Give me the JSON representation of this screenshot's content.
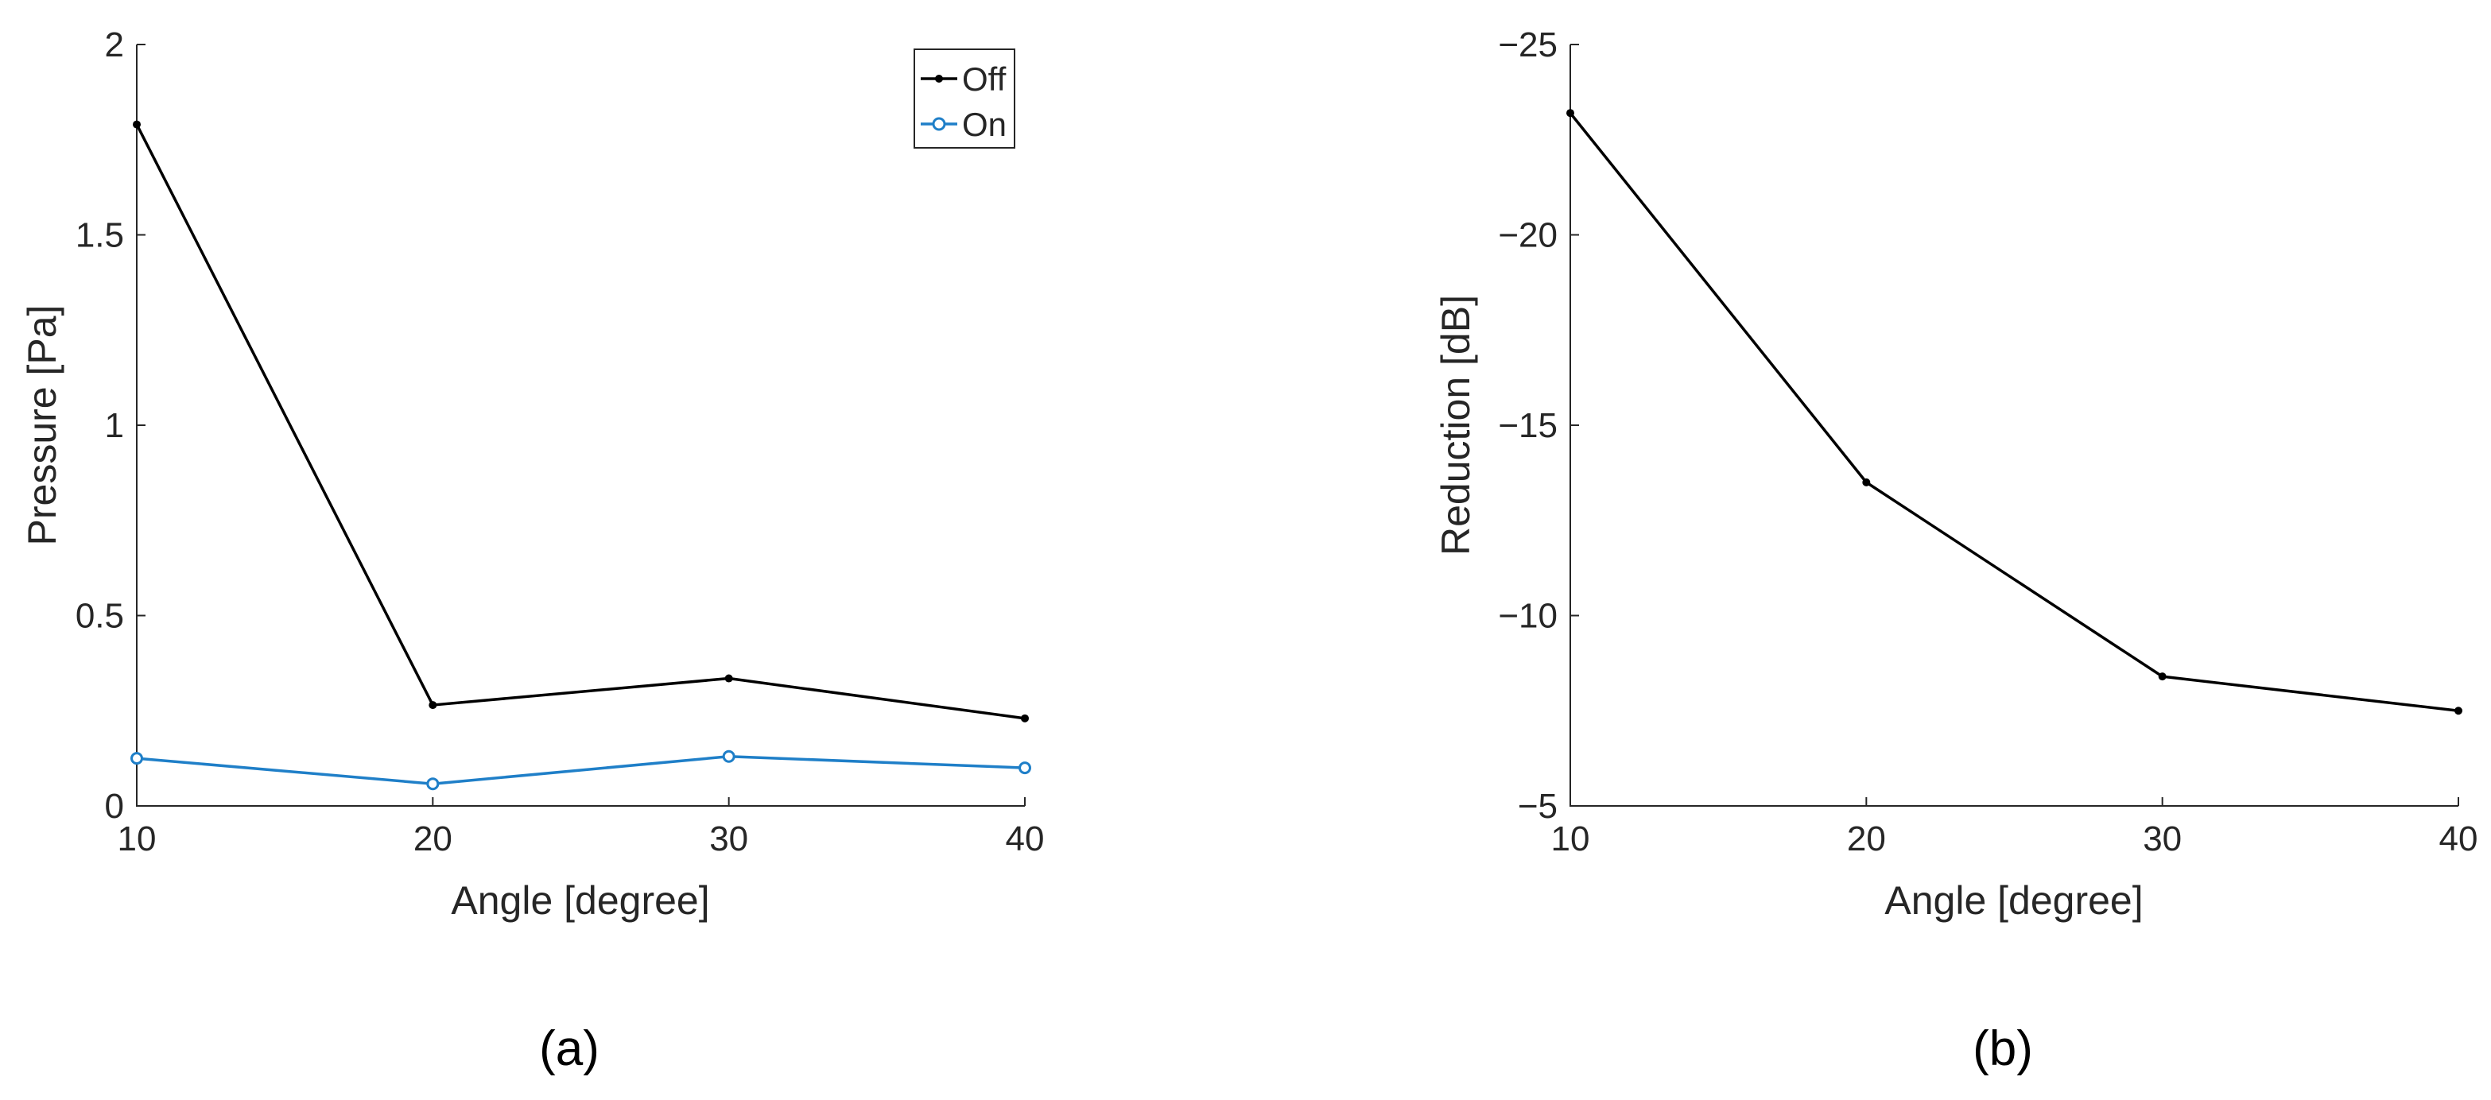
{
  "panels": [
    {
      "caption": "(a)",
      "chart_data": {
        "type": "line",
        "xlabel": "Angle [degree]",
        "ylabel": "Pressure [Pa]",
        "xlim": [
          10,
          40
        ],
        "ylim": [
          0,
          2
        ],
        "y_reversed": false,
        "x_ticks": [
          10,
          20,
          30,
          40
        ],
        "y_ticks": [
          0,
          0.5,
          1,
          1.5,
          2
        ],
        "y_tick_labels": [
          "0",
          "0.5",
          "1",
          "1.5",
          "2"
        ],
        "grid": false,
        "legend_position": "top-right",
        "x": [
          10,
          20,
          30,
          40
        ],
        "series": [
          {
            "name": "Off",
            "color": "#000000",
            "marker": "dot",
            "values": [
              1.79,
              0.265,
              0.335,
              0.23
            ]
          },
          {
            "name": "On",
            "color": "#1f7fc8",
            "marker": "circle",
            "values": [
              0.125,
              0.058,
              0.13,
              0.1
            ]
          }
        ]
      }
    },
    {
      "caption": "(b)",
      "chart_data": {
        "type": "line",
        "xlabel": "Angle [degree]",
        "ylabel": "Reduction [dB]",
        "xlim": [
          10,
          40
        ],
        "ylim": [
          -25,
          -5
        ],
        "y_reversed": true,
        "x_ticks": [
          10,
          20,
          30,
          40
        ],
        "y_ticks": [
          -25,
          -20,
          -15,
          -10,
          -5
        ],
        "y_tick_labels": [
          "−25",
          "−20",
          "−15",
          "−10",
          "−5"
        ],
        "grid": false,
        "legend_position": "none",
        "x": [
          10,
          20,
          30,
          40
        ],
        "series": [
          {
            "color": "#000000",
            "marker": "dot",
            "values": [
              -23.2,
              -13.5,
              -8.4,
              -7.5
            ]
          }
        ]
      }
    }
  ]
}
